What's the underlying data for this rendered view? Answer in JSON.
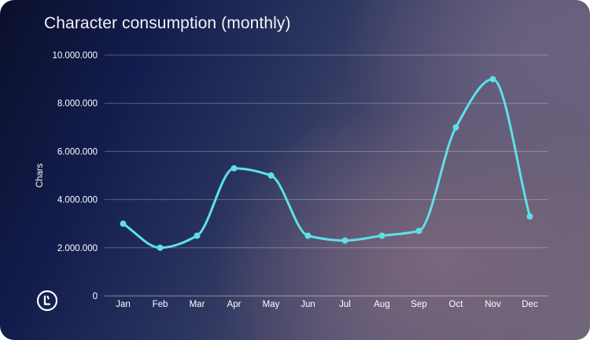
{
  "colors": {
    "line": "#5ee0e8",
    "text": "#ffffff"
  },
  "chart_data": {
    "type": "line",
    "title": "Character consumption (monthly)",
    "xlabel": "",
    "ylabel": "Chars",
    "categories": [
      "Jan",
      "Feb",
      "Mar",
      "Apr",
      "May",
      "Jun",
      "Jul",
      "Aug",
      "Sep",
      "Oct",
      "Nov",
      "Dec"
    ],
    "series": [
      {
        "values": [
          3000000,
          2000000,
          2500000,
          5300000,
          5000000,
          2500000,
          2300000,
          2500000,
          2700000,
          7000000,
          9000000,
          3300000
        ]
      }
    ],
    "ylim": [
      0,
      10000000
    ],
    "yticks": [
      0,
      2000000,
      4000000,
      6000000,
      8000000,
      10000000
    ],
    "ytick_labels": [
      "0",
      "2.000.000",
      "4.000.000",
      "6.000.000",
      "8.000.000",
      "10.000.000"
    ],
    "grid": true,
    "legend": "none",
    "curve": "smooth"
  }
}
